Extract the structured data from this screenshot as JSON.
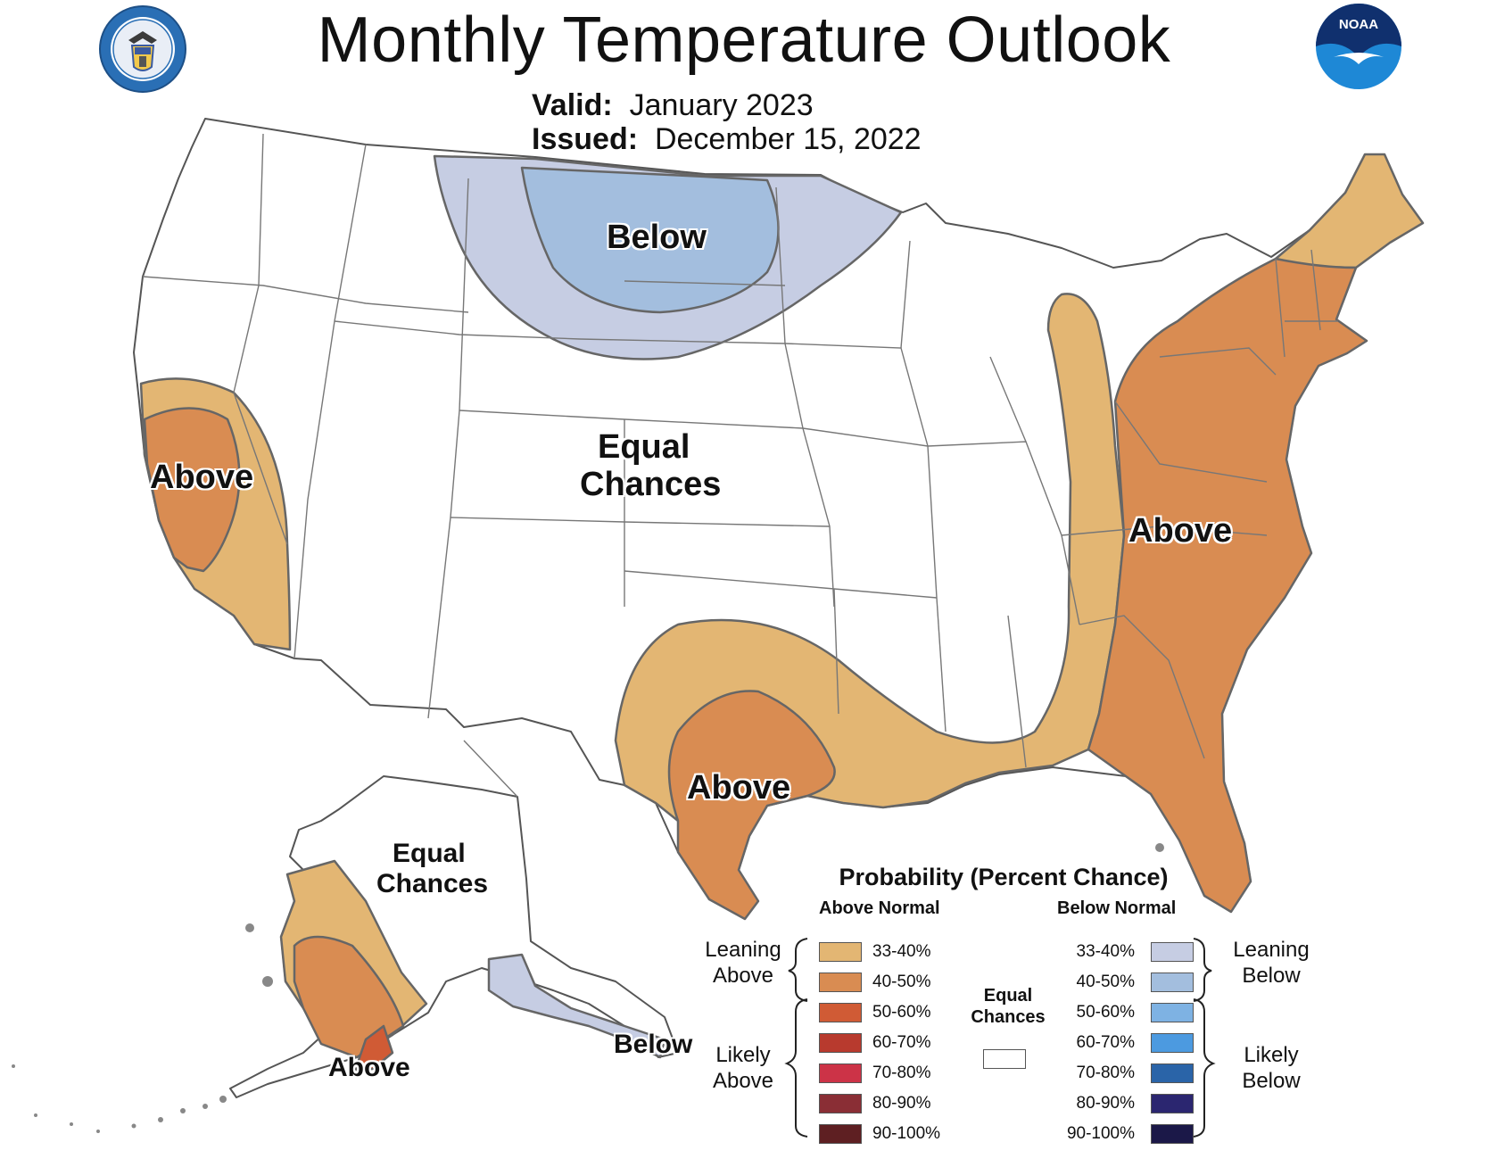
{
  "header": {
    "title": "Monthly Temperature Outlook",
    "valid_label": "Valid:",
    "valid_value": "January 2023",
    "issued_label": "Issued:",
    "issued_value": "December 15, 2022"
  },
  "logos": {
    "left": "department-of-commerce-seal",
    "right": "noaa-logo",
    "right_text": "NOAA"
  },
  "map_labels": {
    "north_below": "Below",
    "central_ec_line1": "Equal",
    "central_ec_line2": "Chances",
    "west_above": "Above",
    "east_above": "Above",
    "south_above": "Above",
    "alaska_ec_line1": "Equal",
    "alaska_ec_line2": "Chances",
    "alaska_above": "Above",
    "alaska_below": "Below"
  },
  "legend": {
    "title": "Probability (Percent Chance)",
    "above_header": "Above Normal",
    "below_header": "Below Normal",
    "leaning_above_1": "Leaning",
    "leaning_above_2": "Above",
    "likely_above_1": "Likely",
    "likely_above_2": "Above",
    "leaning_below_1": "Leaning",
    "leaning_below_2": "Below",
    "likely_below_1": "Likely",
    "likely_below_2": "Below",
    "ec_1": "Equal",
    "ec_2": "Chances",
    "above": [
      {
        "range": "33-40%",
        "color": "#E3B673"
      },
      {
        "range": "40-50%",
        "color": "#D98C52"
      },
      {
        "range": "50-60%",
        "color": "#D05B35"
      },
      {
        "range": "60-70%",
        "color": "#B83A2E"
      },
      {
        "range": "70-80%",
        "color": "#CC3347"
      },
      {
        "range": "80-90%",
        "color": "#8A2E35"
      },
      {
        "range": "90-100%",
        "color": "#5E1F22"
      }
    ],
    "below": [
      {
        "range": "33-40%",
        "color": "#C6CDE3"
      },
      {
        "range": "40-50%",
        "color": "#A3BEDE"
      },
      {
        "range": "50-60%",
        "color": "#7EB2E3"
      },
      {
        "range": "60-70%",
        "color": "#4C9AE0"
      },
      {
        "range": "70-80%",
        "color": "#2A64A8"
      },
      {
        "range": "80-90%",
        "color": "#2B2670"
      },
      {
        "range": "90-100%",
        "color": "#1B1848"
      }
    ]
  }
}
